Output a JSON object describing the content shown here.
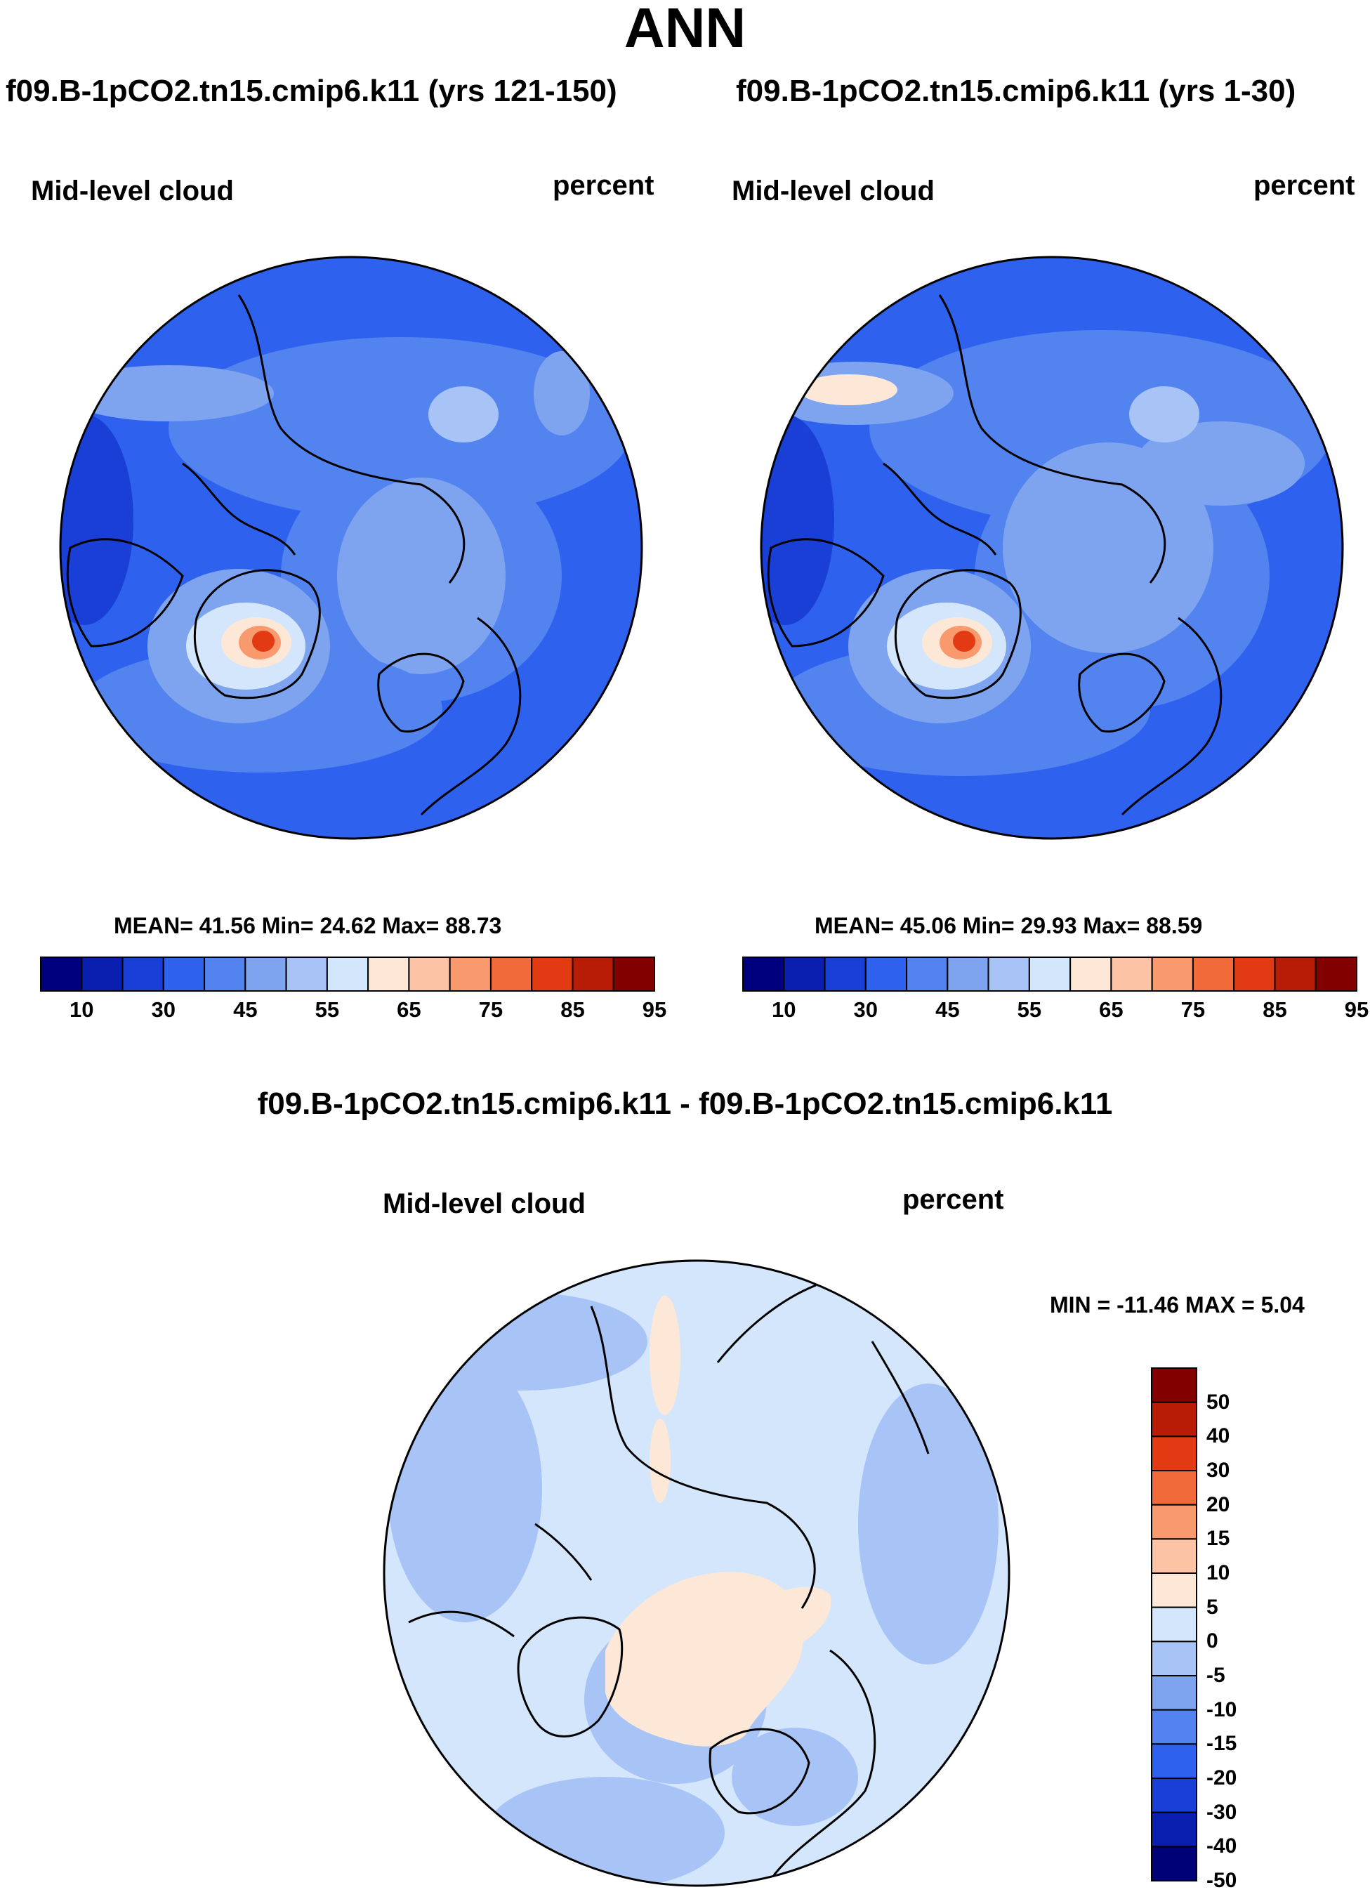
{
  "figure": {
    "title": "ANN",
    "diff_title": "f09.B-1pCO2.tn15.cmip6.k11 - f09.B-1pCO2.tn15.cmip6.k11"
  },
  "colors": {
    "absolute_palette": [
      "#00007f",
      "#0a1fb0",
      "#1a3fd6",
      "#2e62ee",
      "#5283ef",
      "#7ea4f0",
      "#a8c4f6",
      "#d4e6fb",
      "#fde8d8",
      "#fcc4a4",
      "#f89a6e",
      "#f06a3a",
      "#e23a12",
      "#b81c06",
      "#830000"
    ],
    "diff_palette": [
      "#000077",
      "#0a1fb0",
      "#1a3fd6",
      "#2e62ee",
      "#5283ef",
      "#7ea4f0",
      "#a8c4f6",
      "#d4e6fb",
      "#fde8d8",
      "#fcc4a4",
      "#f89a6e",
      "#f06a3a",
      "#e23a12",
      "#b81c06",
      "#830000"
    ]
  },
  "chart_data": [
    {
      "type": "heatmap",
      "projection": "north-polar-stereographic",
      "case_title": "f09.B-1pCO2.tn15.cmip6.k11 (yrs 121-150)",
      "variable": "Mid-level cloud",
      "units": "percent",
      "stats": {
        "text": "MEAN=  41.56  Min=  24.62  Max=  88.73",
        "mean": 41.56,
        "min": 24.62,
        "max": 88.73
      },
      "colorbar": {
        "orientation": "horizontal",
        "levels": [
          5,
          10,
          15,
          20,
          25,
          30,
          35,
          40,
          45,
          50,
          55,
          60,
          65,
          70,
          75,
          80,
          85,
          90,
          95
        ],
        "tick_labels": [
          "10",
          "30",
          "45",
          "55",
          "65",
          "75",
          "85",
          "95"
        ]
      }
    },
    {
      "type": "heatmap",
      "projection": "north-polar-stereographic",
      "case_title": "f09.B-1pCO2.tn15.cmip6.k11 (yrs 1-30)",
      "variable": "Mid-level cloud",
      "units": "percent",
      "stats": {
        "text": "MEAN=  45.06  Min=  29.93  Max=  88.59",
        "mean": 45.06,
        "min": 29.93,
        "max": 88.59
      },
      "colorbar": {
        "orientation": "horizontal",
        "tick_labels": [
          "10",
          "30",
          "45",
          "55",
          "65",
          "75",
          "85",
          "95"
        ]
      }
    },
    {
      "type": "heatmap",
      "projection": "north-polar-stereographic",
      "variable": "Mid-level cloud",
      "units": "percent",
      "stats": {
        "text": "MIN = -11.46 MAX =   5.04",
        "min": -11.46,
        "max": 5.04
      },
      "colorbar": {
        "orientation": "vertical",
        "tick_labels": [
          "50",
          "40",
          "30",
          "20",
          "15",
          "10",
          "5",
          "0",
          "-5",
          "-10",
          "-15",
          "-20",
          "-30",
          "-40",
          "-50"
        ]
      }
    }
  ]
}
